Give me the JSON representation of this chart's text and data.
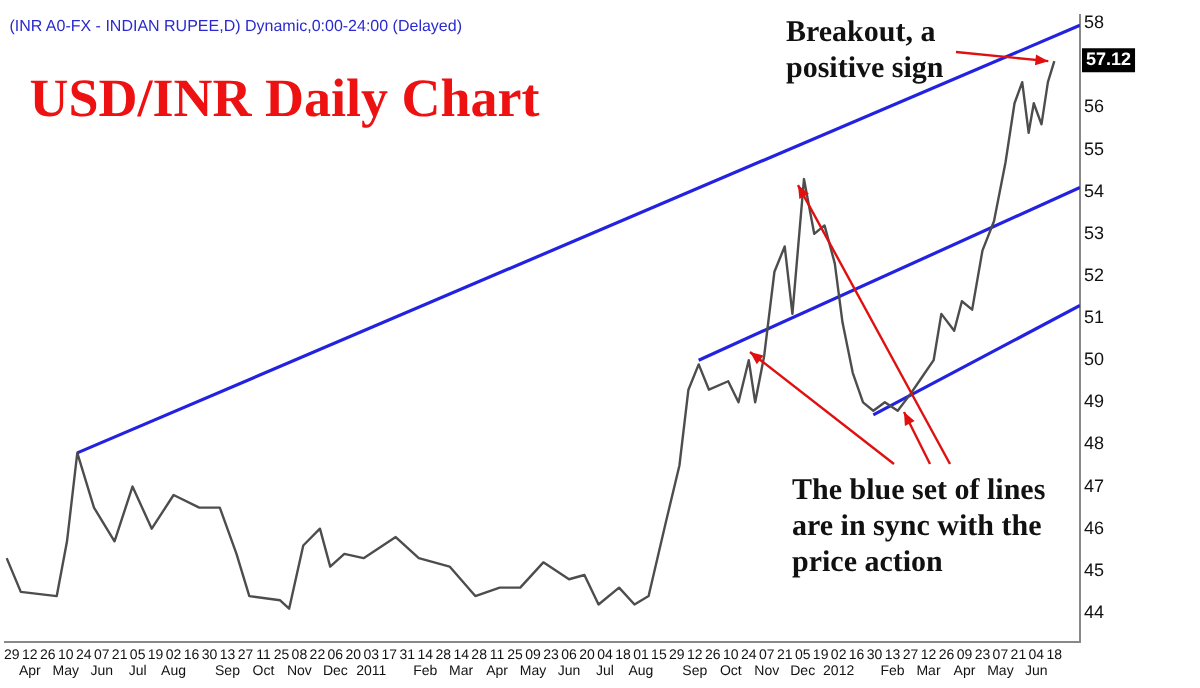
{
  "chart_data": {
    "type": "line",
    "title": "USD/INR Daily Chart",
    "subtitle": "(INR A0-FX - INDIAN RUPEE,D) Dynamic,0:00-24:00 (Delayed)",
    "annotations": [
      {
        "text": "Breakout, a positive sign",
        "x": "2012-06-18",
        "y": 57.1
      },
      {
        "text": "The blue set of lines are in sync with the price action",
        "x": "2011-12-06",
        "y": 54.3
      },
      {
        "text": "57.12",
        "y": 57.12
      }
    ],
    "series": [
      {
        "color": "#4d4d4d",
        "x": [
          "2010-03-25",
          "2010-04-05",
          "2010-05-03",
          "2010-05-11",
          "2010-05-19",
          "2010-05-25",
          "2010-06-01",
          "2010-06-17",
          "2010-07-01",
          "2010-07-16",
          "2010-08-02",
          "2010-08-22",
          "2010-09-07",
          "2010-09-20",
          "2010-09-30",
          "2010-10-24",
          "2010-10-31",
          "2010-11-11",
          "2010-11-24",
          "2010-12-02",
          "2010-12-13",
          "2010-12-28",
          "2011-01-22",
          "2011-02-09",
          "2011-03-05",
          "2011-03-25",
          "2011-04-13",
          "2011-04-29",
          "2011-05-17",
          "2011-06-06",
          "2011-06-18",
          "2011-06-29",
          "2011-07-15",
          "2011-07-27",
          "2011-08-07",
          "2011-08-20",
          "2011-08-31",
          "2011-09-07",
          "2011-09-15",
          "2011-09-23",
          "2011-10-08",
          "2011-10-16",
          "2011-10-24",
          "2011-10-29",
          "2011-11-05",
          "2011-11-13",
          "2011-11-21",
          "2011-11-27",
          "2011-12-06",
          "2011-12-14",
          "2011-12-22",
          "2011-12-30",
          "2012-01-05",
          "2012-01-13",
          "2012-01-21",
          "2012-01-29",
          "2012-02-07",
          "2012-02-17",
          "2012-02-27",
          "2012-03-07",
          "2012-03-16",
          "2012-03-22",
          "2012-04-01",
          "2012-04-07",
          "2012-04-15",
          "2012-04-23",
          "2012-05-02",
          "2012-05-11",
          "2012-05-18",
          "2012-05-24",
          "2012-05-29",
          "2012-06-02",
          "2012-06-08",
          "2012-06-13",
          "2012-06-18"
        ],
        "values": [
          45.3,
          44.5,
          44.4,
          45.7,
          47.8,
          47.2,
          46.5,
          45.7,
          47.0,
          46.0,
          46.8,
          46.5,
          46.5,
          45.4,
          44.4,
          44.3,
          44.1,
          45.6,
          46.0,
          45.1,
          45.4,
          45.3,
          45.8,
          45.3,
          45.1,
          44.4,
          44.6,
          44.6,
          45.2,
          44.8,
          44.9,
          44.2,
          44.6,
          44.2,
          44.4,
          46.1,
          47.5,
          49.3,
          49.9,
          49.3,
          49.5,
          49.0,
          50.0,
          49.0,
          50.1,
          52.1,
          52.7,
          51.1,
          54.3,
          53.0,
          53.2,
          52.3,
          50.9,
          49.7,
          49.0,
          48.8,
          49.0,
          48.8,
          49.2,
          49.6,
          50.0,
          51.1,
          50.7,
          51.4,
          51.2,
          52.6,
          53.3,
          54.7,
          56.1,
          56.6,
          55.4,
          56.1,
          55.6,
          56.6,
          57.1
        ]
      },
      {
        "type": "line",
        "color": "#2222e0",
        "x": [
          "2010-05-19",
          "2012-07-08"
        ],
        "values": [
          47.8,
          57.95
        ]
      },
      {
        "type": "line",
        "color": "#2222e0",
        "x": [
          "2011-09-15",
          "2012-07-08"
        ],
        "values": [
          50.0,
          54.1
        ]
      },
      {
        "type": "line",
        "color": "#2222e0",
        "x": [
          "2012-01-29",
          "2012-07-08"
        ],
        "values": [
          48.7,
          51.3
        ]
      }
    ],
    "xlim": [
      "2010-03-24",
      "2012-07-08"
    ],
    "xticks": [
      {
        "value": "2010-03-29",
        "label": "29"
      },
      {
        "value": "2010-04-12",
        "label": "12\nApr"
      },
      {
        "value": "2010-04-26",
        "label": "26"
      },
      {
        "value": "2010-05-10",
        "label": "10\nMay"
      },
      {
        "value": "2010-05-24",
        "label": "24"
      },
      {
        "value": "2010-06-07",
        "label": "07\nJun"
      },
      {
        "value": "2010-06-21",
        "label": "21"
      },
      {
        "value": "2010-07-05",
        "label": "05\nJul"
      },
      {
        "value": "2010-07-19",
        "label": "19"
      },
      {
        "value": "2010-08-02",
        "label": "02\nAug"
      },
      {
        "value": "2010-08-16",
        "label": "16"
      },
      {
        "value": "2010-08-30",
        "label": "30"
      },
      {
        "value": "2010-09-13",
        "label": "13\nSep"
      },
      {
        "value": "2010-09-27",
        "label": "27"
      },
      {
        "value": "2010-10-11",
        "label": "11\nOct"
      },
      {
        "value": "2010-10-25",
        "label": "25"
      },
      {
        "value": "2010-11-08",
        "label": "08\nNov"
      },
      {
        "value": "2010-11-22",
        "label": "22"
      },
      {
        "value": "2010-12-06",
        "label": "06\nDec"
      },
      {
        "value": "2010-12-20",
        "label": "20"
      },
      {
        "value": "2011-01-03",
        "label": "03\n2011"
      },
      {
        "value": "2011-01-17",
        "label": "17"
      },
      {
        "value": "2011-01-31",
        "label": "31"
      },
      {
        "value": "2011-02-14",
        "label": "14\nFeb"
      },
      {
        "value": "2011-02-28",
        "label": "28"
      },
      {
        "value": "2011-03-14",
        "label": "14\nMar"
      },
      {
        "value": "2011-03-28",
        "label": "28"
      },
      {
        "value": "2011-04-11",
        "label": "11\nApr"
      },
      {
        "value": "2011-04-25",
        "label": "25"
      },
      {
        "value": "2011-05-09",
        "label": "09\nMay"
      },
      {
        "value": "2011-05-23",
        "label": "23"
      },
      {
        "value": "2011-06-06",
        "label": "06\nJun"
      },
      {
        "value": "2011-06-20",
        "label": "20"
      },
      {
        "value": "2011-07-04",
        "label": "04\nJul"
      },
      {
        "value": "2011-07-18",
        "label": "18"
      },
      {
        "value": "2011-08-01",
        "label": "01\nAug"
      },
      {
        "value": "2011-08-15",
        "label": "15"
      },
      {
        "value": "2011-08-29",
        "label": "29"
      },
      {
        "value": "2011-09-12",
        "label": "12\nSep"
      },
      {
        "value": "2011-09-26",
        "label": "26"
      },
      {
        "value": "2011-10-10",
        "label": "10\nOct"
      },
      {
        "value": "2011-10-24",
        "label": "24"
      },
      {
        "value": "2011-11-07",
        "label": "07\nNov"
      },
      {
        "value": "2011-11-21",
        "label": "21"
      },
      {
        "value": "2011-12-05",
        "label": "05\nDec"
      },
      {
        "value": "2011-12-19",
        "label": "19"
      },
      {
        "value": "2012-01-02",
        "label": "02\n2012"
      },
      {
        "value": "2012-01-16",
        "label": "16"
      },
      {
        "value": "2012-01-30",
        "label": "30"
      },
      {
        "value": "2012-02-13",
        "label": "13\nFeb"
      },
      {
        "value": "2012-02-27",
        "label": "27"
      },
      {
        "value": "2012-03-12",
        "label": "12\nMar"
      },
      {
        "value": "2012-03-26",
        "label": "26"
      },
      {
        "value": "2012-04-09",
        "label": "09\nApr"
      },
      {
        "value": "2012-04-23",
        "label": "23"
      },
      {
        "value": "2012-05-07",
        "label": "07\nMay"
      },
      {
        "value": "2012-05-21",
        "label": "21"
      },
      {
        "value": "2012-06-04",
        "label": "04\nJun"
      },
      {
        "value": "2012-06-18",
        "label": "18"
      }
    ],
    "ylim": [
      43.3,
      58.2
    ],
    "yticks": [
      44,
      45,
      46,
      47,
      48,
      49,
      50,
      51,
      52,
      53,
      54,
      55,
      56,
      58
    ],
    "grid": false,
    "legend": false,
    "marker": "none"
  }
}
